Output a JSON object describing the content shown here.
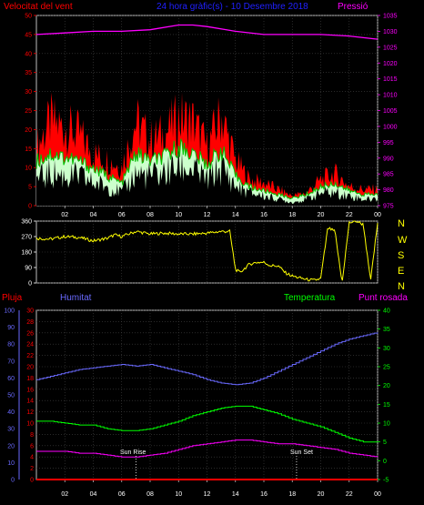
{
  "header": {
    "wind_label": "Velocitat del vent",
    "title": "24 hora gràfic(s) - 10 Desembre 2018",
    "pressure_label": "Pressió"
  },
  "compass": [
    "N",
    "W",
    "S",
    "E",
    "N"
  ],
  "bottom_labels": {
    "rain": "Pluja",
    "humidity": "Humitat",
    "temperature": "Temperatura",
    "dewpoint": "Punt rosada",
    "sunrise": "Sun Rise",
    "sunset": "Sun Set"
  },
  "colors": {
    "wind_speed": "#ff0000",
    "wind_avg": "#00c000",
    "wind_gust_fill": "#ccffcc",
    "pressure": "#ff00ff",
    "direction": "#ffff00",
    "humidity": "#6a6aff",
    "temperature": "#00ff00",
    "dewpoint": "#ff00ff",
    "rain": "#ff0000",
    "grid": "#444444"
  },
  "chart_data": [
    {
      "type": "line",
      "name": "wind_pressure",
      "x_ticks": [
        "02",
        "04",
        "06",
        "08",
        "10",
        "12",
        "14",
        "16",
        "18",
        "20",
        "22",
        "00"
      ],
      "y_left_ticks": [
        0,
        5,
        10,
        15,
        20,
        25,
        30,
        35,
        40,
        45,
        50
      ],
      "y_right_ticks": [
        975,
        980,
        985,
        990,
        995,
        1000,
        1005,
        1010,
        1015,
        1020,
        1025,
        1030,
        1035
      ],
      "y_left_range": [
        0,
        50
      ],
      "y_right_range": [
        975,
        1035
      ],
      "x_range_hours": [
        0,
        24
      ],
      "series": [
        {
          "key": "wind_gust",
          "x": [
            0,
            1,
            2,
            3,
            4,
            5,
            6,
            7,
            8,
            9,
            10,
            11,
            12,
            13,
            14,
            15,
            16,
            17,
            18,
            19,
            20,
            21,
            22,
            23,
            24
          ],
          "values": [
            18,
            26,
            24,
            22,
            16,
            14,
            12,
            26,
            20,
            22,
            27,
            26,
            18,
            28,
            14,
            8,
            7,
            5,
            3,
            4,
            8,
            10,
            6,
            5,
            5
          ]
        },
        {
          "key": "wind_avg",
          "x": [
            0,
            1,
            2,
            3,
            4,
            5,
            6,
            7,
            8,
            9,
            10,
            11,
            12,
            13,
            14,
            15,
            16,
            17,
            18,
            19,
            20,
            21,
            22,
            23,
            24
          ],
          "values": [
            12,
            14,
            13,
            12,
            10,
            8,
            6,
            14,
            12,
            13,
            16,
            14,
            11,
            15,
            8,
            5,
            4,
            3,
            2,
            3,
            5,
            6,
            4,
            3,
            3
          ]
        },
        {
          "key": "wind_speed",
          "x": [
            0,
            1,
            2,
            3,
            4,
            5,
            6,
            7,
            8,
            9,
            10,
            11,
            12,
            13,
            14,
            15,
            16,
            17,
            18,
            19,
            20,
            21,
            22,
            23,
            24
          ],
          "values": [
            8,
            10,
            9,
            9,
            7,
            6,
            4,
            10,
            9,
            10,
            12,
            11,
            8,
            12,
            6,
            4,
            3,
            2,
            1,
            2,
            4,
            4,
            3,
            2,
            2
          ]
        },
        {
          "key": "pressure",
          "x": [
            0,
            2,
            4,
            6,
            8,
            10,
            11,
            12,
            14,
            16,
            18,
            20,
            22,
            24
          ],
          "values": [
            1029,
            1029.5,
            1030,
            1030,
            1030.5,
            1032,
            1032,
            1031.5,
            1030,
            1029,
            1029,
            1029,
            1028.5,
            1027.5
          ]
        }
      ]
    },
    {
      "type": "line",
      "name": "wind_direction",
      "y_ticks": [
        0,
        90,
        180,
        270,
        360
      ],
      "y_range": [
        0,
        360
      ],
      "x_range_hours": [
        0,
        24
      ],
      "series": [
        {
          "key": "direction",
          "x": [
            0,
            1,
            2,
            3,
            4,
            5,
            5.5,
            6,
            7,
            8,
            9,
            10,
            11,
            12,
            13,
            13.6,
            14,
            14.3,
            15,
            15.5,
            16,
            16.5,
            17,
            17.5,
            18,
            18.5,
            19,
            19.5,
            20,
            20.5,
            21,
            21.5,
            22,
            22.5,
            23,
            23.5,
            24
          ],
          "values": [
            260,
            255,
            270,
            265,
            245,
            260,
            280,
            270,
            300,
            285,
            290,
            285,
            285,
            290,
            300,
            300,
            80,
            60,
            110,
            120,
            120,
            100,
            100,
            60,
            40,
            30,
            20,
            15,
            25,
            320,
            300,
            0,
            350,
            360,
            340,
            10,
            350
          ]
        }
      ]
    },
    {
      "type": "line",
      "name": "humidity_temp_dewpoint_rain",
      "x_ticks": [
        "02",
        "04",
        "06",
        "08",
        "10",
        "12",
        "14",
        "16",
        "18",
        "20",
        "22",
        "00"
      ],
      "humidity_ticks": [
        0,
        10,
        20,
        30,
        40,
        50,
        60,
        70,
        80,
        90,
        100
      ],
      "left_ticks": [
        0,
        2,
        4,
        6,
        8,
        10,
        12,
        14,
        16,
        18,
        20,
        22,
        24,
        26,
        28,
        30
      ],
      "right_ticks": [
        -5,
        0,
        5,
        10,
        15,
        20,
        25,
        30,
        35,
        40
      ],
      "y_left_range": [
        0,
        30
      ],
      "y_right_range": [
        -5,
        40
      ],
      "x_range_hours": [
        0,
        24
      ],
      "series": [
        {
          "key": "humidity",
          "x": [
            0,
            1,
            2,
            3,
            4,
            5,
            6,
            7,
            8,
            9,
            10,
            11,
            12,
            13,
            14,
            15,
            16,
            17,
            18,
            19,
            20,
            21,
            22,
            23,
            24
          ],
          "values": [
            59,
            61,
            63,
            65,
            66,
            67,
            68,
            67,
            68,
            66,
            64,
            62,
            59,
            57,
            56,
            57,
            60,
            64,
            68,
            72,
            76,
            80,
            83,
            85,
            87
          ]
        },
        {
          "key": "temperature",
          "x": [
            0,
            1,
            2,
            3,
            4,
            5,
            6,
            7,
            8,
            9,
            10,
            11,
            12,
            13,
            14,
            15,
            16,
            17,
            18,
            19,
            20,
            21,
            22,
            23,
            24
          ],
          "values": [
            10.5,
            10.5,
            10,
            9.5,
            9.5,
            8.5,
            8,
            8,
            8.5,
            9.5,
            10.5,
            12,
            13,
            14,
            14.5,
            14.5,
            13.5,
            12.5,
            11,
            10,
            9,
            7.5,
            6,
            5,
            5
          ]
        },
        {
          "key": "dewpoint",
          "x": [
            0,
            1,
            2,
            3,
            4,
            5,
            6,
            7,
            8,
            9,
            10,
            11,
            12,
            13,
            14,
            15,
            16,
            17,
            18,
            19,
            20,
            21,
            22,
            23,
            24
          ],
          "values": [
            2.5,
            2.5,
            2.5,
            2,
            2,
            1.5,
            1,
            1,
            1.5,
            2,
            3,
            4,
            4.5,
            5,
            5.5,
            5.5,
            5,
            4.5,
            4.5,
            4,
            3.5,
            3,
            2,
            1.5,
            1
          ]
        },
        {
          "key": "rain",
          "x": [
            0,
            24
          ],
          "values": [
            0,
            0
          ]
        }
      ],
      "markers": [
        {
          "key": "sunrise",
          "x": 7.0
        },
        {
          "key": "sunset",
          "x": 18.3
        }
      ]
    }
  ]
}
